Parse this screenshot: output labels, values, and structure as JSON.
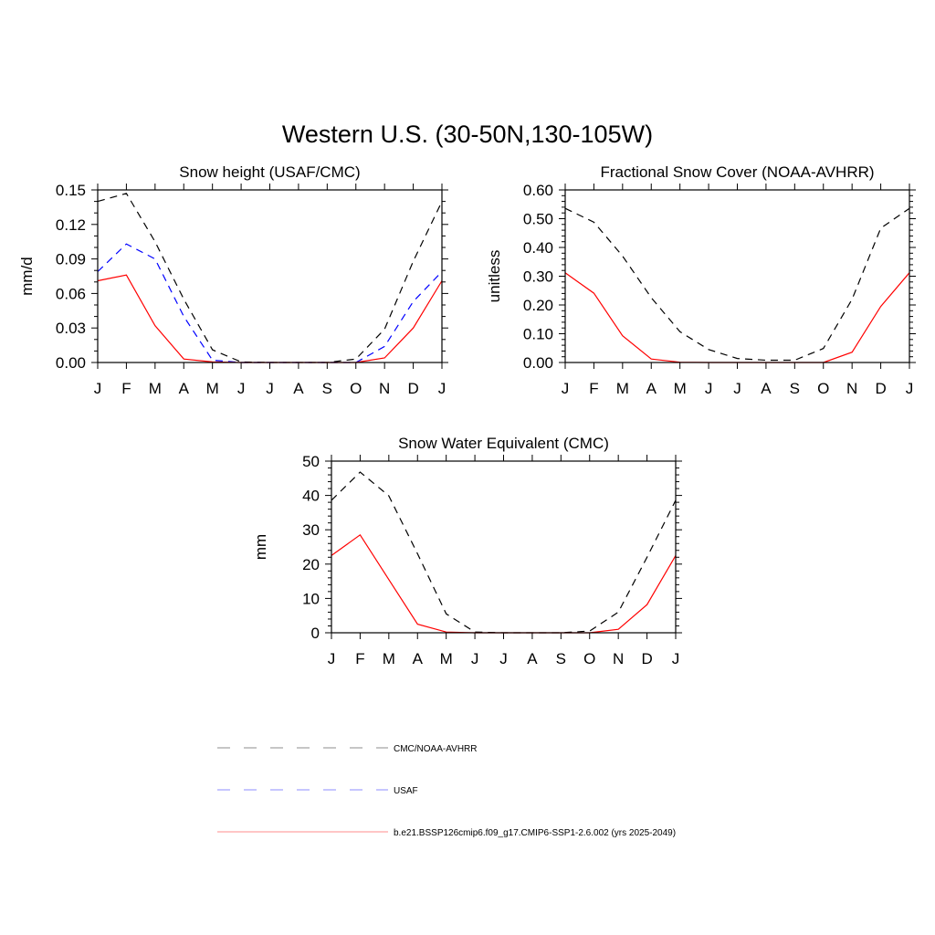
{
  "title": "Western U.S. (30-50N,130-105W)",
  "colors": {
    "obs": "#000000",
    "usaf": "#0000ff",
    "model": "#ff0000"
  },
  "legend": {
    "items": [
      {
        "label": "CMC/NOAA-AVHRR",
        "color": "#000000",
        "style": "dashed"
      },
      {
        "label": "USAF",
        "color": "#0000ff",
        "style": "dashed"
      },
      {
        "label": "b.e21.BSSP126cmip6.f09_g17.CMIP6-SSP1-2.6.002 (yrs 2025-2049)",
        "color": "#ff0000",
        "style": "solid"
      }
    ]
  },
  "chart_data": [
    {
      "type": "line",
      "title": "Snow height (USAF/CMC)",
      "ylabel": "mm/d",
      "xlabel": "",
      "categories": [
        "J",
        "F",
        "M",
        "A",
        "M",
        "J",
        "J",
        "A",
        "S",
        "O",
        "N",
        "D",
        "J"
      ],
      "ylim": [
        0,
        0.15
      ],
      "yticks": [
        "0.00",
        "0.03",
        "0.06",
        "0.09",
        "0.12",
        "0.15"
      ],
      "grid": false,
      "series": [
        {
          "name": "CMC/NOAA-AVHRR",
          "color": "#000000",
          "style": "dashed",
          "values": [
            0.14,
            0.147,
            0.105,
            0.055,
            0.011,
            0.0005,
            0,
            0,
            0,
            0.003,
            0.029,
            0.088,
            0.14
          ]
        },
        {
          "name": "USAF",
          "color": "#0000ff",
          "style": "dashed",
          "values": [
            0.079,
            0.103,
            0.09,
            0.04,
            0.002,
            0,
            0,
            0,
            0,
            0,
            0.014,
            0.053,
            0.079
          ]
        },
        {
          "name": "b.e21.BSSP126cmip6.f09_g17.CMIP6-SSP1-2.6.002 (yrs 2025-2049)",
          "color": "#ff0000",
          "style": "solid",
          "values": [
            0.071,
            0.076,
            0.032,
            0.003,
            0.0005,
            0,
            0,
            0,
            0,
            0,
            0.004,
            0.03,
            0.071
          ]
        }
      ]
    },
    {
      "type": "line",
      "title": "Fractional Snow Cover (NOAA-AVHRR)",
      "ylabel": "unitless",
      "xlabel": "",
      "categories": [
        "J",
        "F",
        "M",
        "A",
        "M",
        "J",
        "J",
        "A",
        "S",
        "O",
        "N",
        "D",
        "J"
      ],
      "ylim": [
        0,
        0.6
      ],
      "yticks": [
        "0.00",
        "0.10",
        "0.20",
        "0.30",
        "0.40",
        "0.50",
        "0.60"
      ],
      "grid": false,
      "series": [
        {
          "name": "CMC/NOAA-AVHRR",
          "color": "#000000",
          "style": "dashed",
          "values": [
            0.536,
            0.488,
            0.37,
            0.225,
            0.107,
            0.045,
            0.014,
            0.008,
            0.008,
            0.049,
            0.22,
            0.467,
            0.536
          ]
        },
        {
          "name": "b.e21.BSSP126cmip6.f09_g17.CMIP6-SSP1-2.6.002 (yrs 2025-2049)",
          "color": "#ff0000",
          "style": "solid",
          "values": [
            0.312,
            0.241,
            0.093,
            0.012,
            0.001,
            0,
            0,
            0,
            0,
            0,
            0.036,
            0.195,
            0.312
          ]
        }
      ]
    },
    {
      "type": "line",
      "title": "Snow Water Equivalent (CMC)",
      "ylabel": "mm",
      "xlabel": "",
      "categories": [
        "J",
        "F",
        "M",
        "A",
        "M",
        "J",
        "J",
        "A",
        "S",
        "O",
        "N",
        "D",
        "J"
      ],
      "ylim": [
        0,
        50
      ],
      "yticks": [
        "0",
        "10",
        "20",
        "30",
        "40",
        "50"
      ],
      "grid": false,
      "series": [
        {
          "name": "CMC/NOAA-AVHRR",
          "color": "#000000",
          "style": "dashed",
          "values": [
            38.6,
            46.8,
            39.9,
            23.0,
            5.5,
            0.2,
            0,
            0,
            0,
            0.5,
            6.0,
            22.0,
            38.6
          ]
        },
        {
          "name": "b.e21.BSSP126cmip6.f09_g17.CMIP6-SSP1-2.6.002 (yrs 2025-2049)",
          "color": "#ff0000",
          "style": "solid",
          "values": [
            22.5,
            28.5,
            15.5,
            2.5,
            0.2,
            0,
            0,
            0,
            0,
            0,
            1.0,
            8.2,
            22.5
          ]
        }
      ]
    }
  ]
}
